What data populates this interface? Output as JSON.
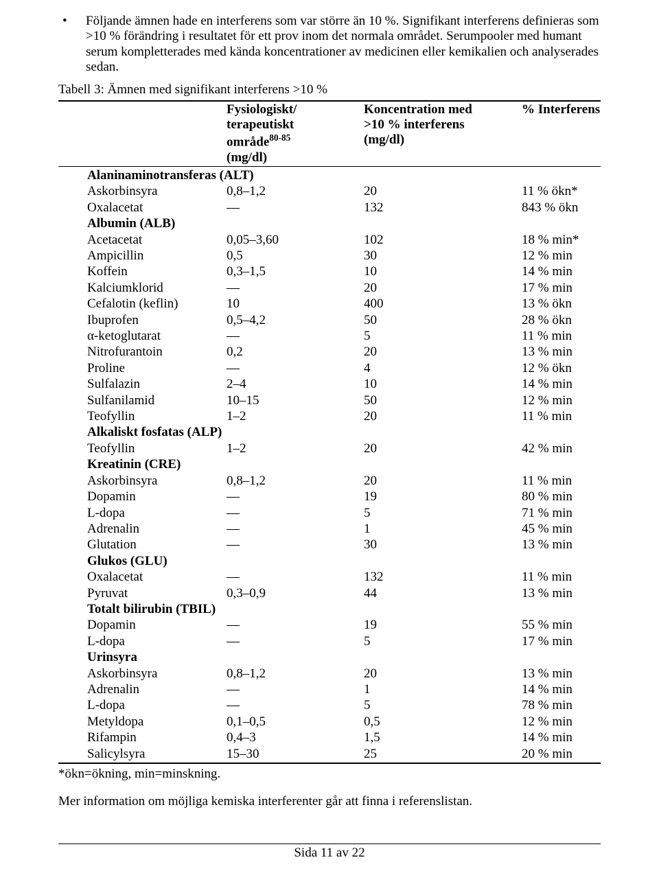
{
  "intro": {
    "bullet": "•",
    "text": "Följande ämnen hade en interferens som var större än 10 %. Signifikant interferens definieras som >10 % förändring i resultatet för ett prov inom det normala området. Serumpooler med humant serum kompletterades med kända koncentrationer av medicinen eller kemikalien och analyserades sedan."
  },
  "table_title": "Tabell 3: Ämnen med signifikant interferens >10 %",
  "headers": {
    "phys_l1": "Fysiologiskt/",
    "phys_l2": "terapeutiskt",
    "phys_l3_pre": "område",
    "phys_l3_sup": "80-85",
    "phys_l4": "(mg/dl)",
    "conc_l1": "Koncentration med",
    "conc_l2": ">10 % interferens",
    "conc_l3": "(mg/dl)",
    "int": "% Interferens"
  },
  "sections": [
    {
      "title": "Alaninaminotransferas (ALT)",
      "rows": [
        {
          "name": "Askorbinsyra",
          "phys": "0,8–1,2",
          "conc": "20",
          "int": "11 % ökn*"
        },
        {
          "name": "Oxalacetat",
          "phys": "—",
          "conc": "132",
          "int": "843 % ökn"
        }
      ]
    },
    {
      "title": "Albumin (ALB)",
      "rows": [
        {
          "name": "Acetacetat",
          "phys": "0,05–3,60",
          "conc": "102",
          "int": "18 % min*"
        },
        {
          "name": "Ampicillin",
          "phys": "0,5",
          "conc": "30",
          "int": "12 % min"
        },
        {
          "name": "Koffein",
          "phys": "0,3–1,5",
          "conc": "10",
          "int": "14 % min"
        },
        {
          "name": "Kalciumklorid",
          "phys": "—",
          "conc": "20",
          "int": "17 % min"
        },
        {
          "name": "Cefalotin (keflin)",
          "phys": "10",
          "conc": "400",
          "int": "13 % ökn"
        },
        {
          "name": "Ibuprofen",
          "phys": "0,5–4,2",
          "conc": "50",
          "int": "28 % ökn"
        },
        {
          "name": "α-ketoglutarat",
          "phys": "—",
          "conc": "5",
          "int": "11 % min"
        },
        {
          "name": "Nitrofurantoin",
          "phys": "0,2",
          "conc": "20",
          "int": "13 % min"
        },
        {
          "name": "Proline",
          "phys": "—",
          "conc": "4",
          "int": "12 % ökn"
        },
        {
          "name": "Sulfalazin",
          "phys": "2–4",
          "conc": "10",
          "int": "14 % min"
        },
        {
          "name": "Sulfanilamid",
          "phys": "10–15",
          "conc": "50",
          "int": "12 % min"
        },
        {
          "name": "Teofyllin",
          "phys": "1–2",
          "conc": "20",
          "int": "11 % min"
        }
      ]
    },
    {
      "title": "Alkaliskt fosfatas (ALP)",
      "rows": [
        {
          "name": "Teofyllin",
          "phys": "1–2",
          "conc": "20",
          "int": "42 % min"
        }
      ]
    },
    {
      "title": "Kreatinin (CRE)",
      "rows": [
        {
          "name": "Askorbinsyra",
          "phys": "0,8–1,2",
          "conc": "20",
          "int": "11 % min"
        },
        {
          "name": "Dopamin",
          "phys": "—",
          "conc": "19",
          "int": "80 % min"
        },
        {
          "name": "L-dopa",
          "phys": "—",
          "conc": "5",
          "int": "71 % min"
        },
        {
          "name": "Adrenalin",
          "phys": "—",
          "conc": "1",
          "int": "45 % min"
        },
        {
          "name": "Glutation",
          "phys": "—",
          "conc": "30",
          "int": "13 % min"
        }
      ]
    },
    {
      "title": "Glukos (GLU)",
      "rows": [
        {
          "name": "Oxalacetat",
          "phys": "—",
          "conc": "132",
          "int": "11 % min"
        },
        {
          "name": "Pyruvat",
          "phys": "0,3–0,9",
          "conc": "44",
          "int": "13 % min"
        }
      ]
    },
    {
      "title": "Totalt bilirubin (TBIL)",
      "rows": [
        {
          "name": "Dopamin",
          "phys": "—",
          "conc": "19",
          "int": "55 % min"
        },
        {
          "name": "L-dopa",
          "phys": "—",
          "conc": "5",
          "int": "17 % min"
        }
      ]
    },
    {
      "title": "Urinsyra",
      "rows": [
        {
          "name": "Askorbinsyra",
          "phys": "0,8–1,2",
          "conc": "20",
          "int": "13 % min"
        },
        {
          "name": "Adrenalin",
          "phys": "—",
          "conc": "1",
          "int": "14 % min"
        },
        {
          "name": "L-dopa",
          "phys": "—",
          "conc": "5",
          "int": "78 % min"
        },
        {
          "name": "Metyldopa",
          "phys": "0,1–0,5",
          "conc": "0,5",
          "int": "12 % min"
        },
        {
          "name": "Rifampin",
          "phys": "0,4–3",
          "conc": "1,5",
          "int": "14 % min"
        },
        {
          "name": "Salicylsyra",
          "phys": "15–30",
          "conc": "25",
          "int": "20 % min"
        }
      ]
    }
  ],
  "footnote": "*ökn=ökning, min=minskning.",
  "after_table": "Mer information om möjliga kemiska interferenter går att finna i referenslistan.",
  "footer": "Sida 11 av 22"
}
